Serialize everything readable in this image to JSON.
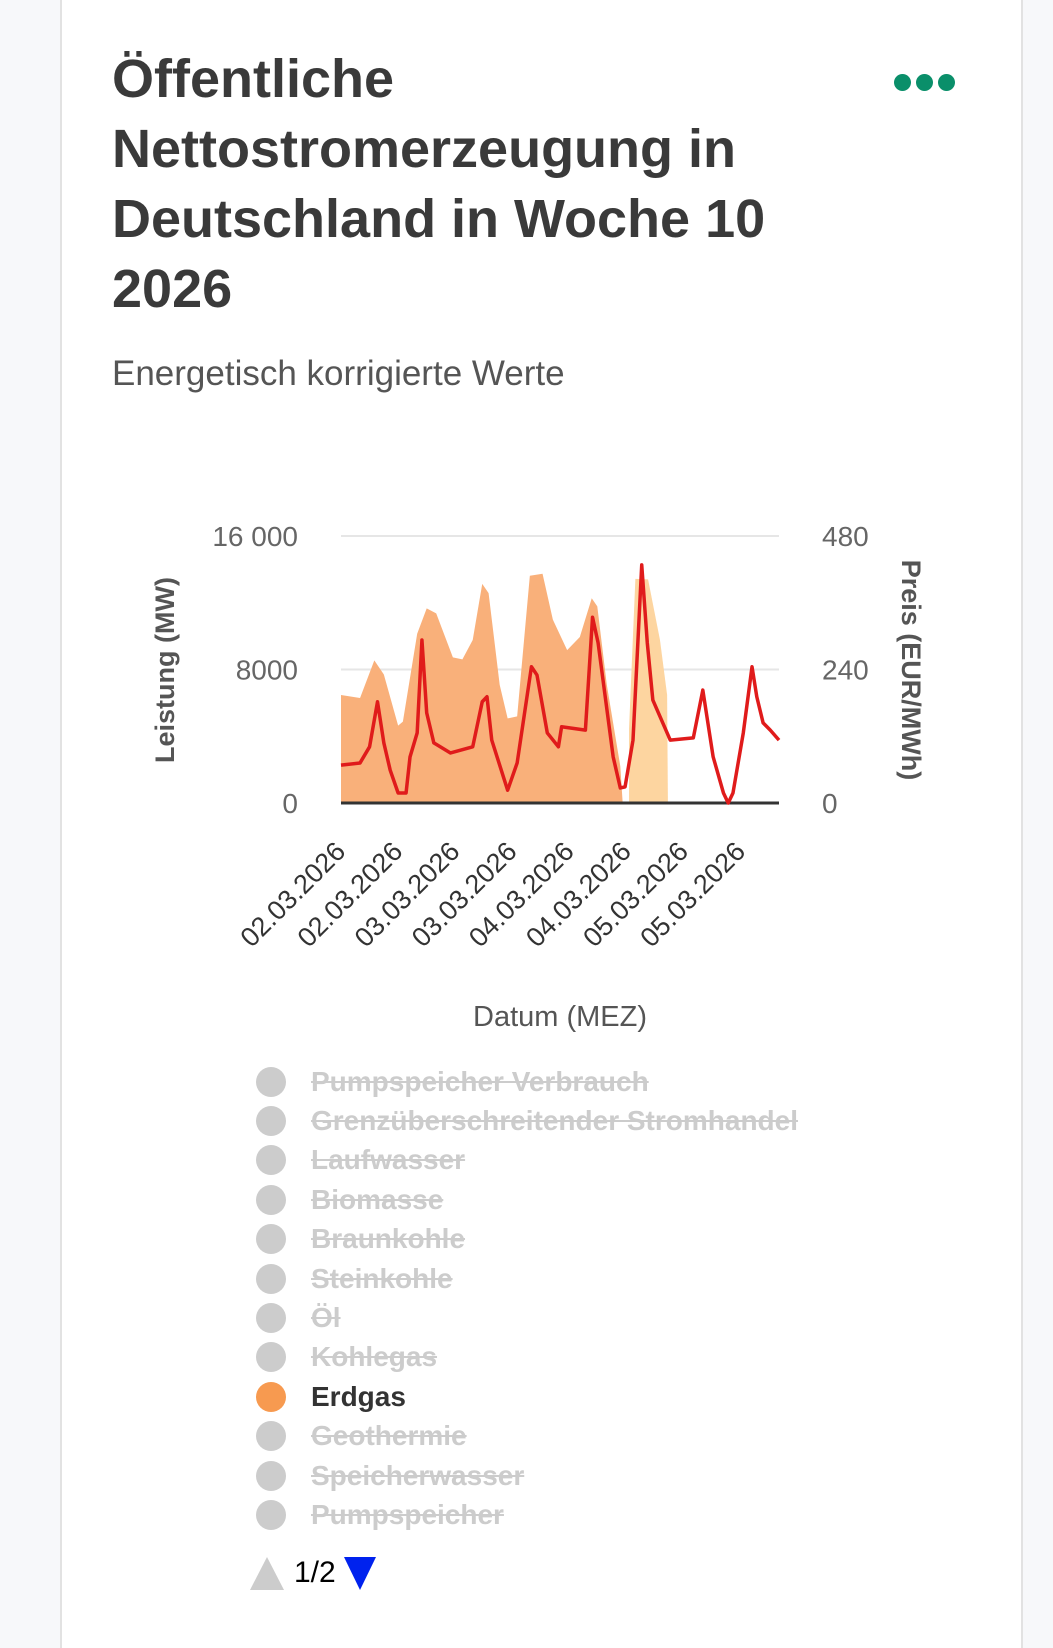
{
  "header": {
    "title": "Öffentliche Nettostromerzeugung in Deutschland in Woche 10 2026",
    "subtitle": "Energetisch korrigierte Werte",
    "menu_icon": "more-horizontal-dots-icon",
    "menu_color": "#0a8f6a"
  },
  "chart_data": {
    "type": "area",
    "title": "Öffentliche Nettostromerzeugung in Deutschland in Woche 10 2026",
    "subtitle": "Energetisch korrigierte Werte",
    "xlabel": "Datum (MEZ)",
    "ylabel": "Leistung (MW)",
    "y2label": "Preis (EUR/MWh)",
    "xlim": [
      "2026-03-02T00:00",
      "2026-03-05T20:00"
    ],
    "ylim": [
      0,
      16000
    ],
    "y2lim": [
      0,
      480
    ],
    "yticks": [
      {
        "v": 0,
        "label": "0"
      },
      {
        "v": 8000,
        "label": "8000"
      },
      {
        "v": 16000,
        "label": "16 000"
      }
    ],
    "y2ticks": [
      {
        "v": 0,
        "label": "0"
      },
      {
        "v": 240,
        "label": "240"
      },
      {
        "v": 480,
        "label": "480"
      }
    ],
    "xticks": [
      {
        "t": "2026-03-02T00:00",
        "label": "02.03.2026"
      },
      {
        "t": "2026-03-02T12:00",
        "label": "02.03.2026"
      },
      {
        "t": "2026-03-03T00:00",
        "label": "03.03.2026"
      },
      {
        "t": "2026-03-03T12:00",
        "label": "03.03.2026"
      },
      {
        "t": "2026-03-04T00:00",
        "label": "04.03.2026"
      },
      {
        "t": "2026-03-04T12:00",
        "label": "04.03.2026"
      },
      {
        "t": "2026-03-05T00:00",
        "label": "05.03.2026"
      },
      {
        "t": "2026-03-05T12:00",
        "label": "05.03.2026"
      }
    ],
    "grid": true,
    "series": [
      {
        "name": "Erdgas",
        "type": "area",
        "axis": "left",
        "color": "#f9b07a",
        "points": [
          [
            "2026-03-02T00:00",
            6470
          ],
          [
            "2026-03-02T04:00",
            6290
          ],
          [
            "2026-03-02T07:00",
            8550
          ],
          [
            "2026-03-02T09:00",
            7700
          ],
          [
            "2026-03-02T12:00",
            4640
          ],
          [
            "2026-03-02T13:00",
            4880
          ],
          [
            "2026-03-02T16:00",
            10140
          ],
          [
            "2026-03-02T18:00",
            11660
          ],
          [
            "2026-03-02T20:00",
            11360
          ],
          [
            "2026-03-02T23:30",
            8730
          ],
          [
            "2026-03-03T01:30",
            8610
          ],
          [
            "2026-03-03T03:40",
            9770
          ],
          [
            "2026-03-03T05:40",
            13130
          ],
          [
            "2026-03-03T07:00",
            12580
          ],
          [
            "2026-03-03T09:20",
            7080
          ],
          [
            "2026-03-03T11:00",
            5070
          ],
          [
            "2026-03-03T13:00",
            5190
          ],
          [
            "2026-03-03T15:40",
            13620
          ],
          [
            "2026-03-03T18:20",
            13740
          ],
          [
            "2026-03-03T20:30",
            10990
          ],
          [
            "2026-03-03T23:30",
            9160
          ],
          [
            "2026-03-04T02:10",
            9950
          ],
          [
            "2026-03-04T04:40",
            12270
          ],
          [
            "2026-03-04T05:50",
            11780
          ],
          [
            "2026-03-04T07:50",
            7080
          ],
          [
            "2026-03-04T10:40",
            2200
          ],
          [
            "2026-03-04T11:10",
            0
          ]
        ]
      },
      {
        "name": "Erdgas",
        "type": "area",
        "axis": "left",
        "color": "#fdd5a0",
        "points": [
          [
            "2026-03-04T12:30",
            4450
          ],
          [
            "2026-03-04T13:50",
            13430
          ],
          [
            "2026-03-04T16:30",
            13400
          ],
          [
            "2026-03-04T19:00",
            9770
          ],
          [
            "2026-03-04T20:30",
            6470
          ],
          [
            "2026-03-04T20:40",
            0
          ]
        ]
      },
      {
        "name": "Preis",
        "type": "line",
        "axis": "right",
        "color": "#e01b1b",
        "points": [
          [
            "2026-03-02T00:00",
            68
          ],
          [
            "2026-03-02T04:00",
            72
          ],
          [
            "2026-03-02T06:00",
            101
          ],
          [
            "2026-03-02T07:40",
            182
          ],
          [
            "2026-03-02T09:00",
            108
          ],
          [
            "2026-03-02T10:20",
            59
          ],
          [
            "2026-03-02T12:00",
            18
          ],
          [
            "2026-03-02T13:40",
            18
          ],
          [
            "2026-03-02T14:30",
            83
          ],
          [
            "2026-03-02T16:00",
            126
          ],
          [
            "2026-03-02T17:00",
            293
          ],
          [
            "2026-03-02T18:00",
            162
          ],
          [
            "2026-03-02T19:30",
            108
          ],
          [
            "2026-03-02T23:00",
            90
          ],
          [
            "2026-03-03T03:40",
            101
          ],
          [
            "2026-03-03T05:40",
            182
          ],
          [
            "2026-03-03T06:40",
            191
          ],
          [
            "2026-03-03T07:40",
            113
          ],
          [
            "2026-03-03T11:00",
            23
          ],
          [
            "2026-03-03T13:00",
            72
          ],
          [
            "2026-03-03T16:00",
            245
          ],
          [
            "2026-03-03T17:10",
            230
          ],
          [
            "2026-03-03T19:20",
            126
          ],
          [
            "2026-03-03T21:40",
            101
          ],
          [
            "2026-03-03T22:20",
            137
          ],
          [
            "2026-03-04T03:20",
            131
          ],
          [
            "2026-03-04T04:50",
            334
          ],
          [
            "2026-03-04T06:00",
            288
          ],
          [
            "2026-03-04T09:10",
            83
          ],
          [
            "2026-03-04T10:40",
            27
          ],
          [
            "2026-03-04T11:40",
            29
          ],
          [
            "2026-03-04T13:20",
            113
          ],
          [
            "2026-03-04T15:10",
            428
          ],
          [
            "2026-03-04T16:20",
            288
          ],
          [
            "2026-03-04T17:30",
            185
          ],
          [
            "2026-03-04T21:10",
            113
          ],
          [
            "2026-03-05T02:00",
            117
          ],
          [
            "2026-03-05T04:00",
            203
          ],
          [
            "2026-03-05T06:10",
            83
          ],
          [
            "2026-03-05T08:20",
            18
          ],
          [
            "2026-03-05T09:20",
            0
          ],
          [
            "2026-03-05T10:20",
            18
          ],
          [
            "2026-03-05T12:30",
            126
          ],
          [
            "2026-03-05T14:20",
            245
          ],
          [
            "2026-03-05T15:20",
            191
          ],
          [
            "2026-03-05T16:40",
            144
          ],
          [
            "2026-03-05T18:10",
            131
          ],
          [
            "2026-03-05T20:00",
            113
          ]
        ]
      }
    ]
  },
  "legend": {
    "items": [
      {
        "label": "Pumpspeicher Verbrauch",
        "active": false
      },
      {
        "label": "Grenzüberschreitender Stromhandel",
        "active": false
      },
      {
        "label": "Laufwasser",
        "active": false
      },
      {
        "label": "Biomasse",
        "active": false
      },
      {
        "label": "Braunkohle",
        "active": false
      },
      {
        "label": "Steinkohle",
        "active": false
      },
      {
        "label": "Öl",
        "active": false
      },
      {
        "label": "Kohlegas",
        "active": false
      },
      {
        "label": "Erdgas",
        "active": true,
        "color": "#f79a50"
      },
      {
        "label": "Geothermie",
        "active": false
      },
      {
        "label": "Speicherwasser",
        "active": false
      },
      {
        "label": "Pumpspeicher",
        "active": false
      }
    ],
    "page": "1/2",
    "prev_icon": "triangle-up-icon",
    "next_icon": "triangle-down-icon"
  }
}
